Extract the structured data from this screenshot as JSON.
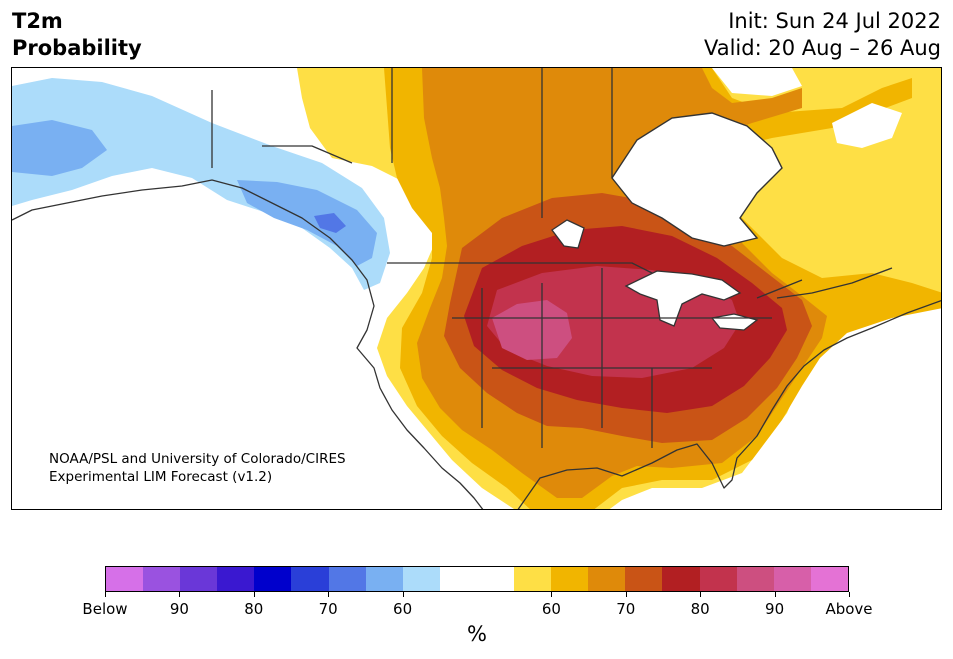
{
  "title": {
    "line1": "T2m",
    "line2": "Probability"
  },
  "dates": {
    "init": "Init: Sun 24 Jul 2022",
    "valid": "Valid: 20 Aug – 26 Aug"
  },
  "credit": {
    "line1": "NOAA/PSL and University of Colorado/CIRES",
    "line2": "Experimental LIM Forecast (v1.2)"
  },
  "colorbar": {
    "unit": "%",
    "colors": [
      "#d670e8",
      "#9a52e0",
      "#6a37d8",
      "#3a18d0",
      "#0000cc",
      "#2a3fd8",
      "#5277e6",
      "#79b0f2",
      "#acdcfa",
      "#ffffff",
      "#ffffff",
      "#fedf45",
      "#f1b500",
      "#df8a0a",
      "#c95416",
      "#b21f22",
      "#c2334d",
      "#cd4f80",
      "#d75fa9",
      "#e472d5"
    ],
    "ticks": [
      "Below",
      "90",
      "80",
      "70",
      "60",
      "60",
      "70",
      "80",
      "90",
      "Above"
    ],
    "tick_positions": [
      0,
      2,
      4,
      6,
      8,
      12,
      14,
      16,
      18,
      20
    ]
  },
  "map": {
    "domain": "North America",
    "fill_colors": {
      "cold_light": "#acdcfa",
      "cold_mid": "#79b0f2",
      "cold_dark": "#5277e6",
      "warm_1": "#fedf45",
      "warm_2": "#f1b500",
      "warm_3": "#df8a0a",
      "warm_4": "#c95416",
      "warm_5": "#b21f22",
      "warm_6": "#c2334d",
      "warm_7": "#cd4f80"
    }
  }
}
